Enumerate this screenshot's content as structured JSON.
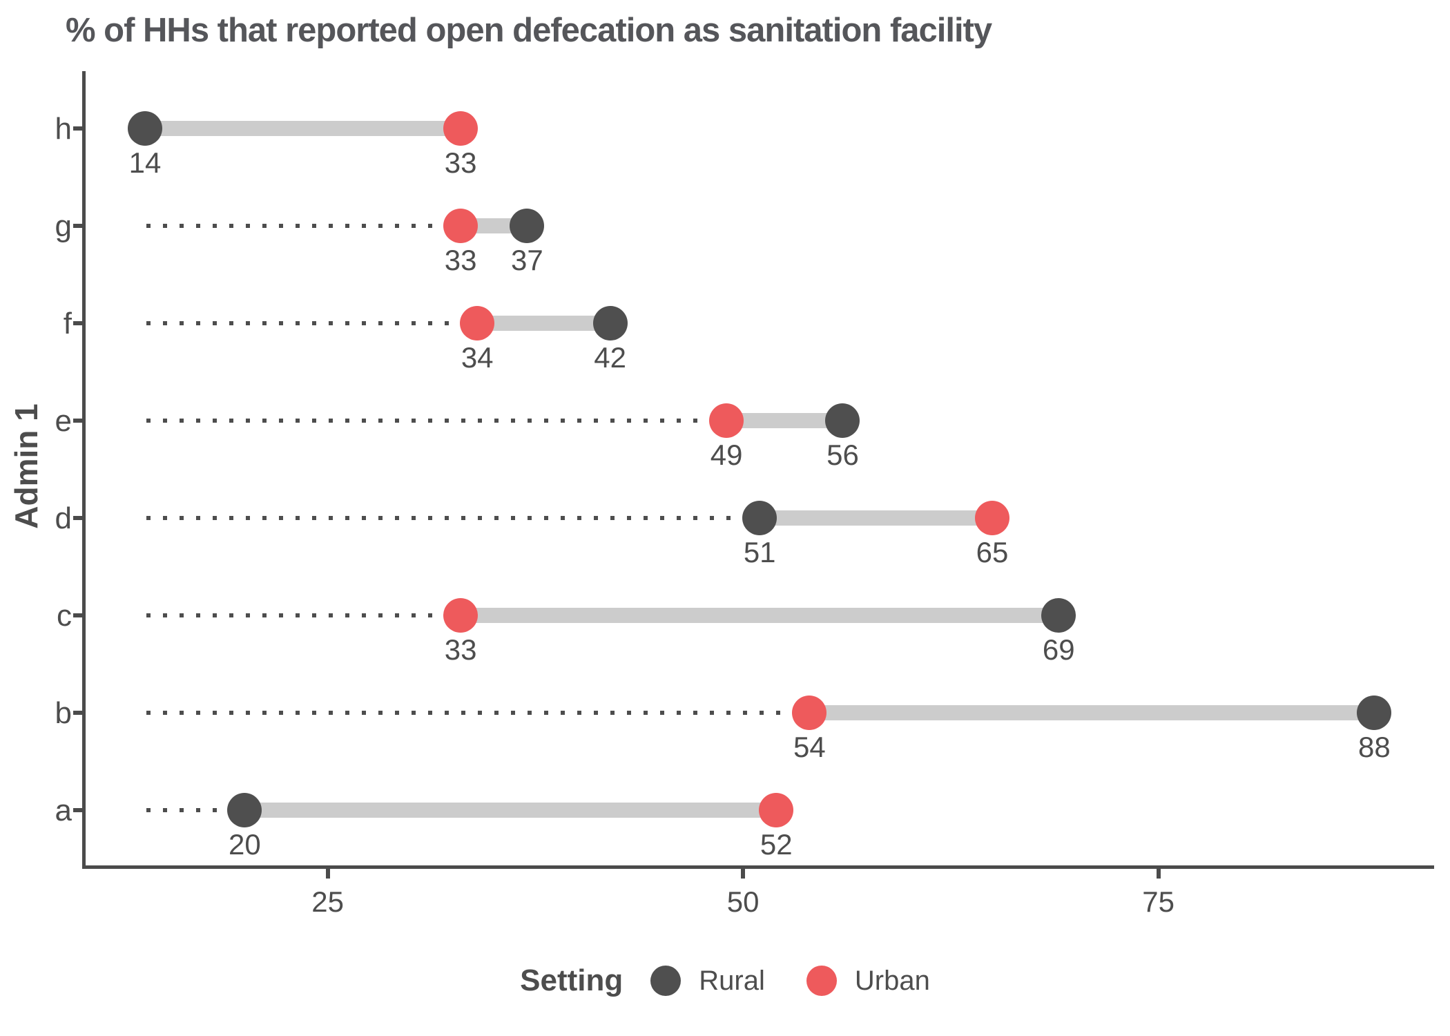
{
  "chart_data": {
    "type": "dumbbell",
    "title": "% of HHs that reported open defecation as sanitation facility",
    "xlabel": "",
    "ylabel": "Admin 1",
    "categories": [
      "h",
      "g",
      "f",
      "e",
      "d",
      "c",
      "b",
      "a"
    ],
    "series": [
      {
        "name": "Rural",
        "color": "#4f4f4f",
        "values": [
          14,
          37,
          42,
          56,
          51,
          69,
          88,
          20
        ]
      },
      {
        "name": "Urban",
        "color": "#ee5a5c",
        "values": [
          33,
          33,
          34,
          49,
          65,
          33,
          54,
          52
        ]
      }
    ],
    "value_labels_shown": true,
    "x_ticks": [
      25,
      50,
      75
    ],
    "x_domain": [
      10.3,
      91.6
    ],
    "leader_line_start": 14,
    "grid": "off",
    "legend": {
      "title": "Setting",
      "position": "bottom",
      "entries": [
        {
          "label": "Rural",
          "color": "#4f4f4f"
        },
        {
          "label": "Urban",
          "color": "#ee5a5c"
        }
      ]
    },
    "colors": {
      "connector": "#cccccc",
      "leader_dots": "#4d4d4d",
      "axis": "#4b4b4b",
      "text": "#4d4d4d",
      "title_text": "#55565a"
    }
  }
}
